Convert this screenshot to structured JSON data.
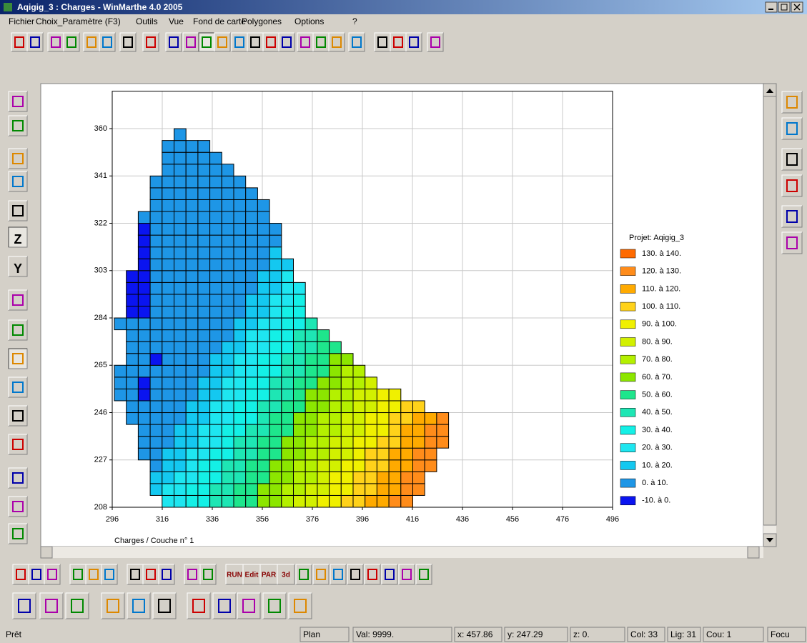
{
  "window": {
    "title": "Aqigig_3 : Charges - WinMarthe 4.0 2005"
  },
  "menu": [
    "Fichier",
    "Choix_Paramètre (F3)",
    "Outils",
    "Vue",
    "Fond de carte",
    "Polygones",
    "Options",
    "?"
  ],
  "toolbar_labels": [
    "RUN",
    "Edit",
    "PAR",
    "3d"
  ],
  "left_toolbar_labels": [
    "Z",
    "Y"
  ],
  "chart_data": {
    "type": "map",
    "caption": "Charges / Couche n° 1",
    "xlim": [
      296,
      496
    ],
    "ylim": [
      208,
      375
    ],
    "xticks": [
      296,
      316,
      336,
      356,
      376,
      396,
      416,
      436,
      456,
      476,
      496
    ],
    "yticks": [
      208,
      227,
      246,
      265,
      284,
      303,
      322,
      341,
      360
    ],
    "grid": true,
    "legend": {
      "title": "Projet: Aqigig_3",
      "position": "right",
      "entries": [
        {
          "label": "130. à 140.",
          "color": "#ff6a00"
        },
        {
          "label": "120. à 130.",
          "color": "#ff8c1a"
        },
        {
          "label": "110. à 120.",
          "color": "#ffaa00"
        },
        {
          "label": "100. à 110.",
          "color": "#ffd21a"
        },
        {
          "label": "90. à 100.",
          "color": "#f0f000"
        },
        {
          "label": "80. à 90.",
          "color": "#d2f000"
        },
        {
          "label": "70. à 80.",
          "color": "#b4f000"
        },
        {
          "label": "60. à 70.",
          "color": "#8ce600"
        },
        {
          "label": "50. à 60.",
          "color": "#1ee68c"
        },
        {
          "label": "40. à 50.",
          "color": "#1ee6b4"
        },
        {
          "label": "30. à 40.",
          "color": "#14f0e6"
        },
        {
          "label": "20. à 30.",
          "color": "#1ee6f0"
        },
        {
          "label": "10. à 20.",
          "color": "#14c8f0"
        },
        {
          "label": "0. à 10.",
          "color": "#1e96e6"
        },
        {
          "label": "-10. à 0.",
          "color": "#0a14f0"
        }
      ]
    }
  },
  "status_bar": [
    "Prêt",
    "Plan",
    "Val: 9999.",
    "x: 457.86",
    "y: 247.29",
    "z: 0.",
    "Col: 33",
    "Lig: 31",
    "Cou: 1",
    "Focu"
  ]
}
